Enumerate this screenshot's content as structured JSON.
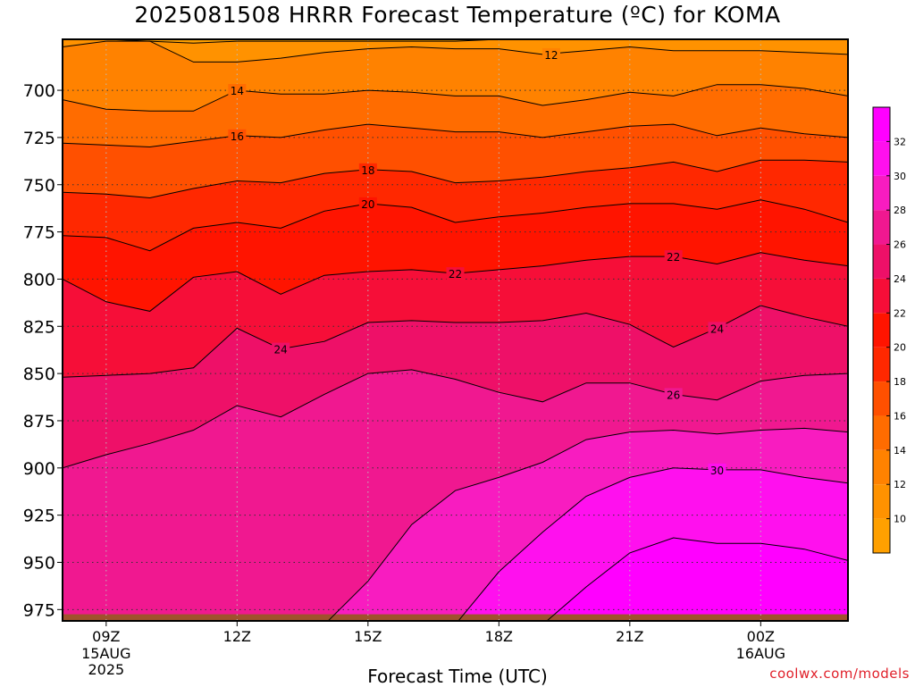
{
  "title": "2025081508 HRRR Forecast Temperature (ºC) for KOMA",
  "credit": "coolwx.com/models",
  "chart_data": {
    "type": "heatmap",
    "title": "2025081508 HRRR Forecast Temperature (ºC) for KOMA",
    "xlabel": "Forecast Time (UTC)",
    "ylabel": "",
    "x_hours": [
      8,
      9,
      10,
      11,
      12,
      13,
      14,
      15,
      16,
      17,
      18,
      19,
      20,
      21,
      22,
      23,
      24,
      25,
      26
    ],
    "xlim": [
      8,
      26
    ],
    "x_ticks": [
      {
        "hour": 9,
        "label": "09Z"
      },
      {
        "hour": 12,
        "label": "12Z"
      },
      {
        "hour": 15,
        "label": "15Z"
      },
      {
        "hour": 18,
        "label": "18Z"
      },
      {
        "hour": 21,
        "label": "21Z"
      },
      {
        "hour": 24,
        "label": "00Z"
      }
    ],
    "date_labels": [
      {
        "hour": 9,
        "lines": [
          "15AUG",
          "2025"
        ]
      },
      {
        "hour": 24,
        "lines": [
          "16AUG"
        ]
      }
    ],
    "ylim": [
      673,
      981
    ],
    "y_ticks": [
      700,
      725,
      750,
      775,
      800,
      825,
      850,
      875,
      900,
      925,
      950,
      975
    ],
    "grid": true,
    "contour_interval": 2,
    "temperature_contours": [
      {
        "t": 10,
        "p": [
          672,
          673,
          674,
          675,
          674,
          674,
          674,
          674,
          674,
          674,
          673,
          673,
          673,
          673,
          672,
          672,
          672,
          672,
          672
        ]
      },
      {
        "t": 12,
        "p": [
          677,
          674,
          674,
          685,
          685,
          683,
          680,
          678,
          677,
          678,
          678,
          681,
          679,
          677,
          679,
          679,
          679,
          680,
          681
        ]
      },
      {
        "t": 14,
        "p": [
          705,
          710,
          711,
          711,
          700,
          702,
          702,
          700,
          701,
          703,
          703,
          708,
          705,
          701,
          703,
          697,
          697,
          699,
          703
        ]
      },
      {
        "t": 16,
        "p": [
          728,
          729,
          730,
          727,
          724,
          725,
          721,
          718,
          720,
          722,
          722,
          725,
          722,
          719,
          718,
          724,
          720,
          723,
          725
        ]
      },
      {
        "t": 18,
        "p": [
          754,
          755,
          757,
          752,
          748,
          749,
          744,
          742,
          743,
          749,
          748,
          746,
          743,
          741,
          738,
          743,
          737,
          737,
          738
        ]
      },
      {
        "t": 20,
        "p": [
          777,
          778,
          785,
          773,
          770,
          773,
          764,
          760,
          762,
          770,
          767,
          765,
          762,
          760,
          760,
          763,
          758,
          763,
          770
        ]
      },
      {
        "t": 22,
        "p": [
          800,
          812,
          817,
          799,
          796,
          808,
          798,
          796,
          795,
          797,
          795,
          793,
          790,
          788,
          788,
          792,
          786,
          790,
          793
        ]
      },
      {
        "t": 24,
        "p": [
          852,
          851,
          850,
          847,
          826,
          837,
          833,
          823,
          822,
          823,
          823,
          822,
          818,
          824,
          836,
          826,
          814,
          820,
          825
        ]
      },
      {
        "t": 26,
        "p": [
          900,
          893,
          887,
          880,
          867,
          873,
          861,
          850,
          848,
          853,
          860,
          865,
          855,
          855,
          861,
          864,
          854,
          851,
          850
        ]
      },
      {
        "t": 28,
        "p": [
          983,
          983,
          983,
          983,
          983,
          983,
          983,
          960,
          930,
          912,
          905,
          897,
          885,
          881,
          880,
          882,
          880,
          879,
          881
        ]
      },
      {
        "t": 30,
        "p": [
          983,
          983,
          983,
          983,
          983,
          983,
          983,
          983,
          983,
          983,
          955,
          934,
          915,
          905,
          900,
          901,
          901,
          905,
          908
        ]
      },
      {
        "t": 32,
        "p": [
          983,
          983,
          983,
          983,
          983,
          983,
          983,
          983,
          983,
          983,
          983,
          983,
          963,
          945,
          937,
          940,
          940,
          943,
          949
        ]
      }
    ],
    "contour_labels": [
      {
        "t": 12,
        "hour": 19.2
      },
      {
        "t": 14,
        "hour": 12.0
      },
      {
        "t": 16,
        "hour": 12.0
      },
      {
        "t": 18,
        "hour": 15.0
      },
      {
        "t": 20,
        "hour": 15.0
      },
      {
        "t": 22,
        "hour": 17.0
      },
      {
        "t": 22,
        "hour": 22.0
      },
      {
        "t": 24,
        "hour": 13.0
      },
      {
        "t": 24,
        "hour": 23.0
      },
      {
        "t": 26,
        "hour": 22.0
      },
      {
        "t": 30,
        "hour": 23.0
      }
    ],
    "colorbar": {
      "ticks": [
        10,
        12,
        14,
        16,
        18,
        20,
        22,
        24,
        26,
        28,
        30,
        32
      ],
      "range": [
        8,
        34
      ]
    },
    "colors": {
      "t8": "#ffa000",
      "t10": "#ff9200",
      "t12": "#ff8200",
      "t14": "#ff6c00",
      "t16": "#ff5000",
      "t18": "#ff2800",
      "t20": "#ff1400",
      "t22": "#f60e38",
      "t24": "#ee1068",
      "t26": "#f01890",
      "t28": "#f81cc0",
      "t30": "#ff10ee",
      "t32": "#ff00ff",
      "ground": "#a0522d",
      "grid": "#888888",
      "contour": "#000000"
    }
  }
}
